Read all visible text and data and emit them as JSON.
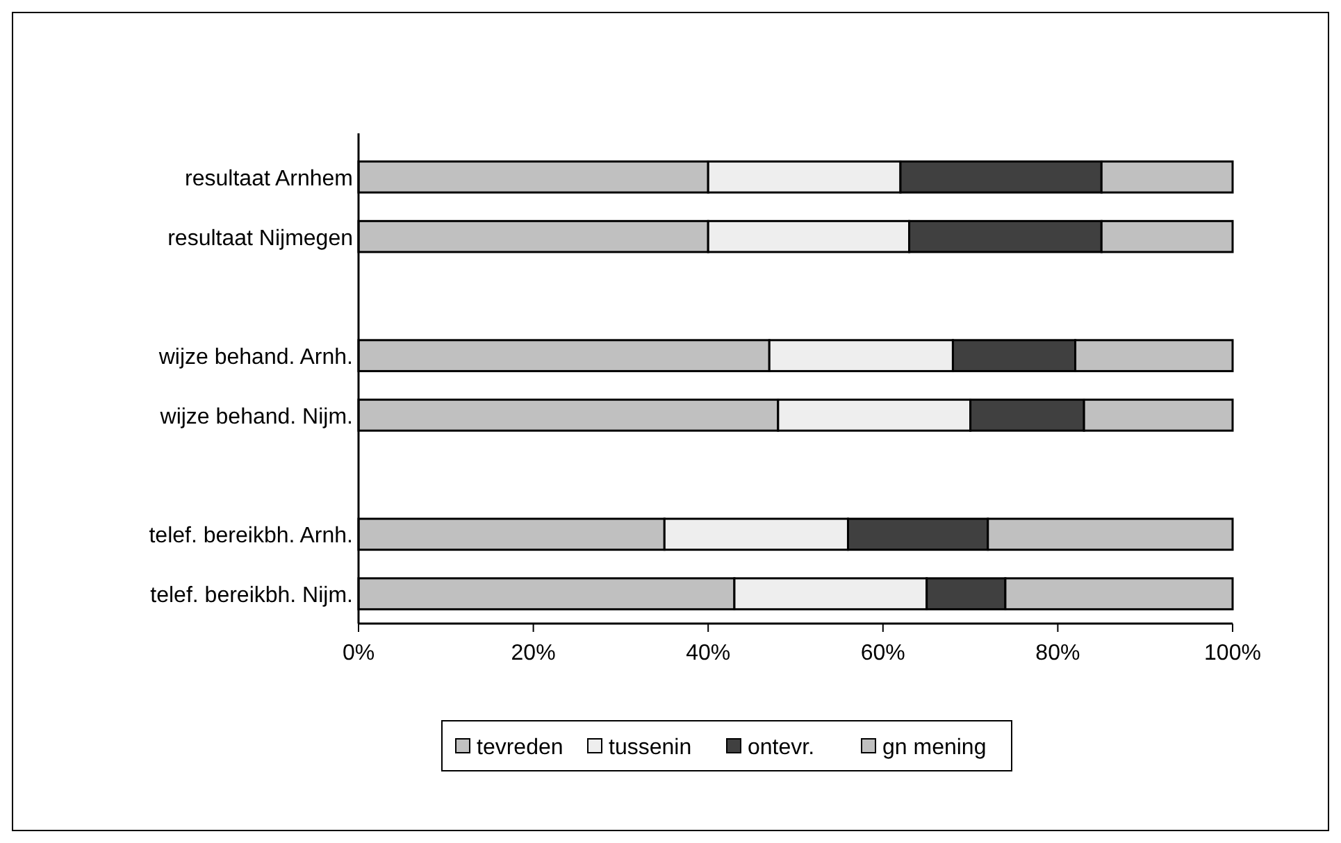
{
  "chart_data": {
    "type": "bar",
    "orientation": "horizontal",
    "stacked": true,
    "categories": [
      "resultaat Arnhem",
      "resultaat Nijmegen",
      null,
      "wijze behand. Arnh.",
      "wijze behand. Nijm.",
      null,
      "telef. bereikbh. Arnh.",
      "telef. bereikbh. Nijm."
    ],
    "series": [
      {
        "name": "tevreden",
        "color": "#c0c0c0",
        "values": [
          40,
          40,
          null,
          47,
          48,
          null,
          35,
          43
        ]
      },
      {
        "name": "tussenin",
        "color": "#eeeeee",
        "values": [
          22,
          23,
          null,
          21,
          22,
          null,
          21,
          22
        ]
      },
      {
        "name": "ontevr.",
        "color": "#404040",
        "values": [
          23,
          22,
          null,
          14,
          13,
          null,
          16,
          9
        ]
      },
      {
        "name": "gn mening",
        "color": "#c0c0c0",
        "values": [
          15,
          15,
          null,
          18,
          17,
          null,
          28,
          26
        ]
      }
    ],
    "xlim": [
      0,
      100
    ],
    "xticks": [
      {
        "value": 0,
        "label": "0%"
      },
      {
        "value": 20,
        "label": "20%"
      },
      {
        "value": 40,
        "label": "40%"
      },
      {
        "value": 60,
        "label": "60%"
      },
      {
        "value": 80,
        "label": "80%"
      },
      {
        "value": 100,
        "label": "100%"
      }
    ],
    "grid": false,
    "legend": "bottom"
  }
}
